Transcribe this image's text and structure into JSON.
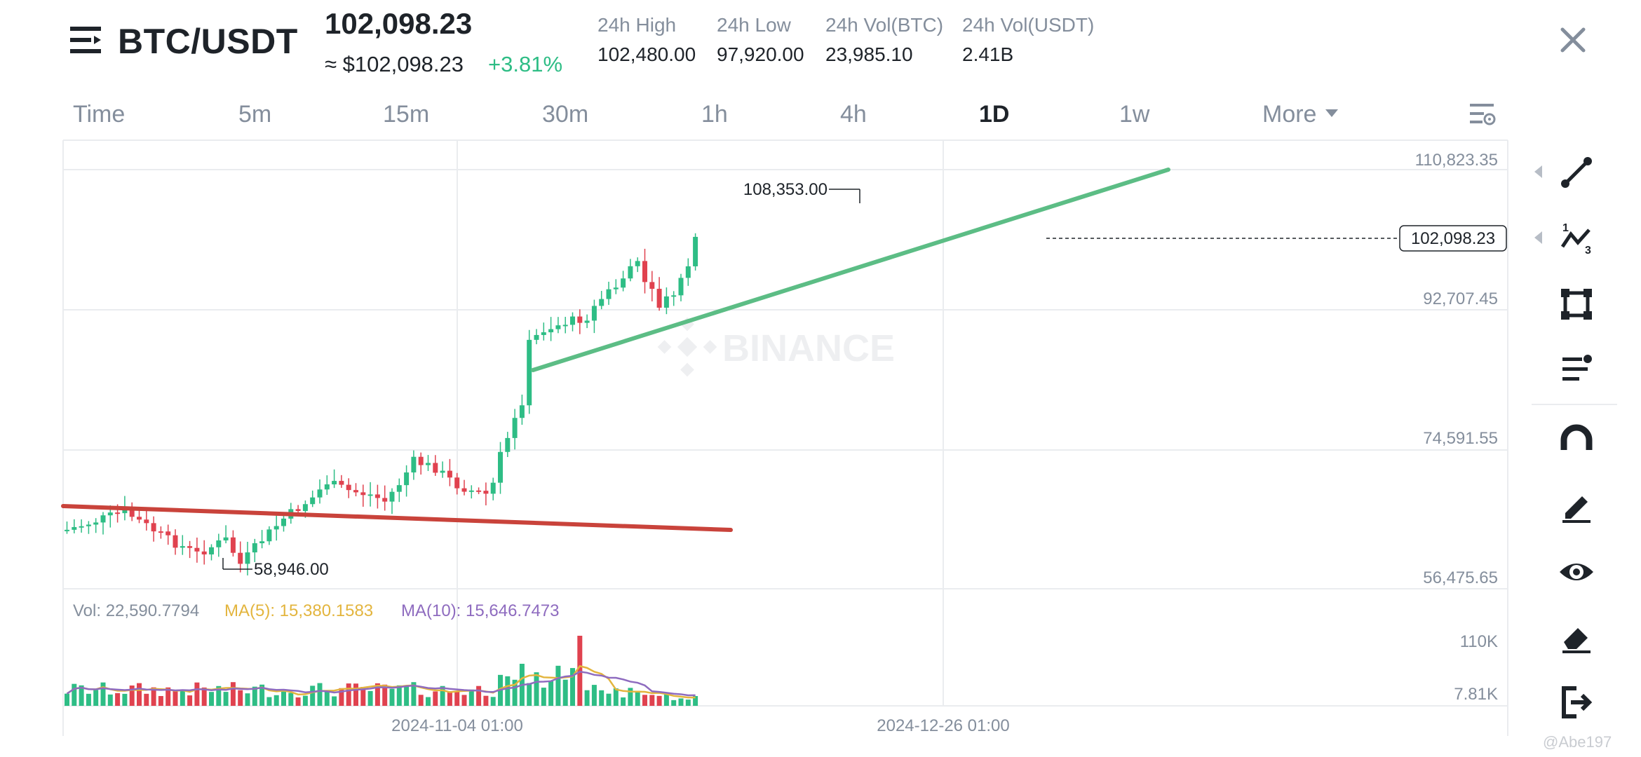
{
  "header": {
    "pair": "BTC/USDT",
    "last_price": "102,098.23",
    "price_usd": "≈ $102,098.23",
    "change_pct": "+3.81%",
    "stats": [
      {
        "label": "24h High",
        "value": "102,480.00"
      },
      {
        "label": "24h Low",
        "value": "97,920.00"
      },
      {
        "label": "24h Vol(BTC)",
        "value": "23,985.10"
      },
      {
        "label": "24h Vol(USDT)",
        "value": "2.41B"
      }
    ]
  },
  "intervals": {
    "items": [
      "Time",
      "5m",
      "15m",
      "30m",
      "1h",
      "4h",
      "1D",
      "1w",
      "More"
    ],
    "active": "1D"
  },
  "chart": {
    "watermark": "BINANCE",
    "price_axis": [
      "110,823.35",
      "92,707.45",
      "74,591.55",
      "56,475.65"
    ],
    "current_price_tag": "102,098.23",
    "high_label": "108,353.00",
    "low_label": "58,946.00",
    "volume_legend": {
      "vol": "Vol: 22,590.7794",
      "ma5": "MA(5): 15,380.1583",
      "ma10": "MA(10): 15,646.7473"
    },
    "volume_axis": [
      "110K",
      "7.81K"
    ],
    "date_axis": [
      "2024-11-04 01:00",
      "2024-12-26 01:00"
    ]
  },
  "toolbar": {
    "tools": [
      "trend-line-icon",
      "wave-pattern-icon",
      "shape-rectangle-icon",
      "fibonacci-icon",
      "magnet-icon",
      "pencil-icon",
      "eye-icon",
      "eraser-icon",
      "exit-icon"
    ]
  },
  "footer": {
    "watermark_user": "@Abe197"
  },
  "colors": {
    "up": "#2ebd85",
    "down": "#e0424f",
    "grid": "#eaecef",
    "muted": "#848e9c",
    "ma5": "#e3b53e",
    "ma10": "#8e6bbf",
    "support_line": "#5cbd85",
    "resistance_line": "#c9433b"
  },
  "chart_data": {
    "type": "candlestick",
    "symbol": "BTC/USDT",
    "interval": "1D",
    "ylim": [
      56475.65,
      110823.35
    ],
    "price_ticks": [
      110823.35,
      92707.45,
      74591.55,
      56475.65
    ],
    "dates_shown": [
      "2024-11-04 01:00",
      "2024-12-26 01:00"
    ],
    "last_price": 102098.23,
    "period_high": 108353.0,
    "period_low": 58946.0,
    "volume_ticks": [
      "110K",
      "7.81K"
    ],
    "last_volume": 22590.7794,
    "volume_ma5": 15380.1583,
    "volume_ma10": 15646.7473
  }
}
